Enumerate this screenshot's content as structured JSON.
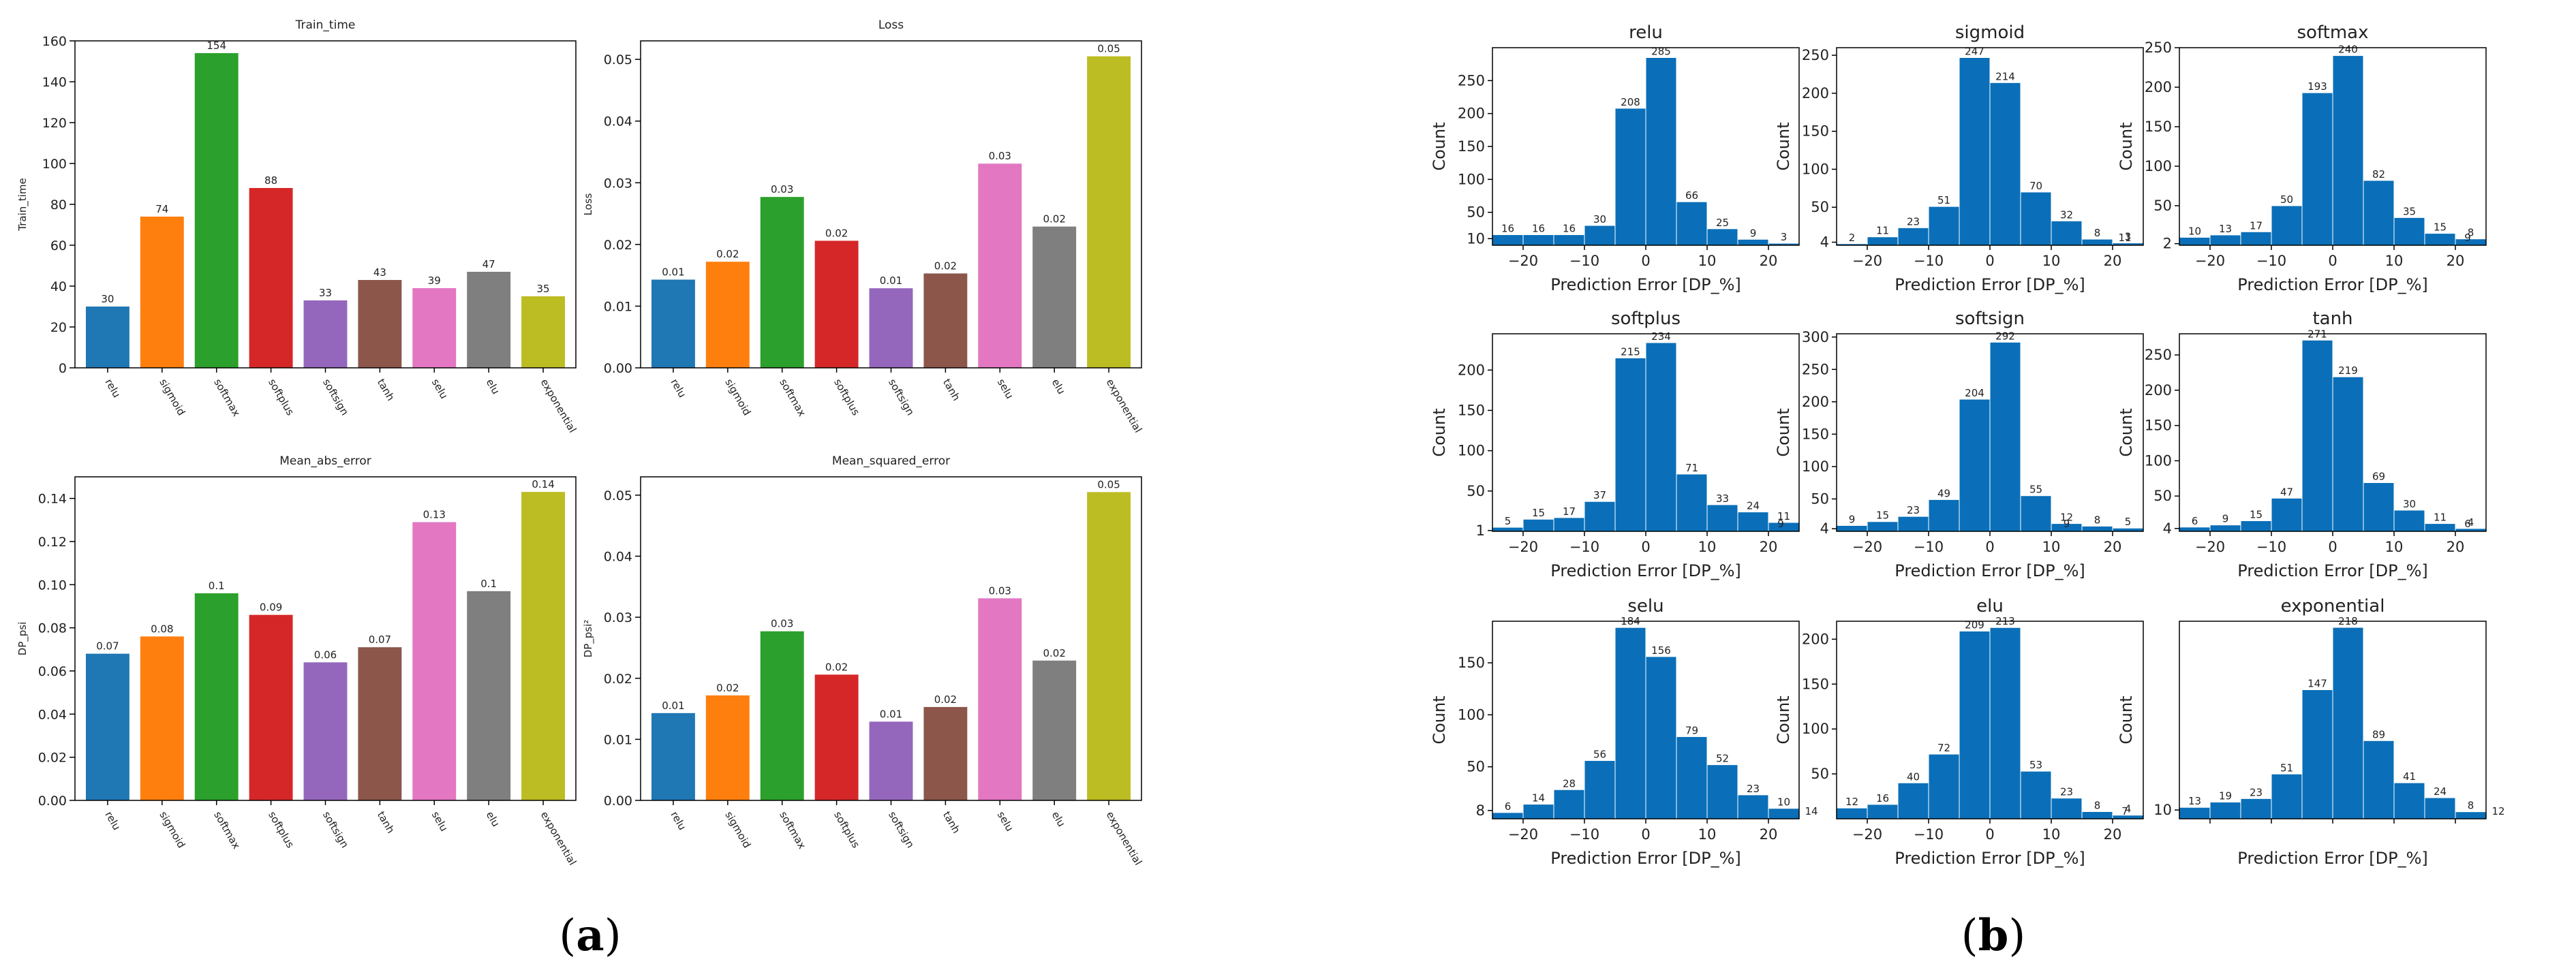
{
  "panel_labels": [
    {
      "open": "(",
      "letter": "a",
      "close": ")"
    },
    {
      "open": "(",
      "letter": "b",
      "close": ")"
    }
  ],
  "colors": {
    "bars": [
      "#1f77b4",
      "#ff7f0e",
      "#2ca02c",
      "#d62728",
      "#9467bd",
      "#8c564b",
      "#e377c2",
      "#7f7f7f",
      "#bcbd22"
    ],
    "histogram": "#0a6fb8",
    "axis": "#000000"
  },
  "chart_data": [
    {
      "type": "bar",
      "title": "Train_time",
      "ylabel": "Train_time",
      "xlabel": "",
      "categories": [
        "relu",
        "sigmoid",
        "softmax",
        "softplus",
        "softsign",
        "tanh",
        "selu",
        "elu",
        "exponential"
      ],
      "values": [
        30,
        74,
        154,
        88,
        33,
        43,
        39,
        47,
        35
      ],
      "data_labels": [
        "30",
        "74",
        "154",
        "88",
        "33",
        "43",
        "39",
        "47",
        "35"
      ],
      "ylim": [
        0,
        160
      ],
      "yticks": [
        0,
        20,
        40,
        60,
        80,
        100,
        120,
        140,
        160
      ],
      "ytick_labels": [
        "0",
        "20",
        "40",
        "60",
        "80",
        "100",
        "120",
        "140",
        "160"
      ]
    },
    {
      "type": "bar",
      "title": "Loss",
      "ylabel": "Loss",
      "xlabel": "",
      "categories": [
        "relu",
        "sigmoid",
        "softmax",
        "softplus",
        "softsign",
        "tanh",
        "selu",
        "elu",
        "exponential"
      ],
      "values": [
        0.0143,
        0.0172,
        0.0277,
        0.0206,
        0.0129,
        0.0153,
        0.0331,
        0.0229,
        0.0505
      ],
      "data_labels": [
        "0.01",
        "0.02",
        "0.03",
        "0.02",
        "0.01",
        "0.02",
        "0.03",
        "0.02",
        "0.05"
      ],
      "ylim": [
        0,
        0.053
      ],
      "yticks": [
        0,
        0.01,
        0.02,
        0.03,
        0.04,
        0.05
      ],
      "ytick_labels": [
        "0.00",
        "0.01",
        "0.02",
        "0.03",
        "0.04",
        "0.05"
      ]
    },
    {
      "type": "bar",
      "title": "Mean_abs_error",
      "ylabel": "DP_psi",
      "xlabel": "",
      "categories": [
        "relu",
        "sigmoid",
        "softmax",
        "softplus",
        "softsign",
        "tanh",
        "selu",
        "elu",
        "exponential"
      ],
      "values": [
        0.068,
        0.076,
        0.096,
        0.086,
        0.064,
        0.071,
        0.129,
        0.097,
        0.143
      ],
      "data_labels": [
        "0.07",
        "0.08",
        "0.1",
        "0.09",
        "0.06",
        "0.07",
        "0.13",
        "0.1",
        "0.14"
      ],
      "ylim": [
        0,
        0.15
      ],
      "yticks": [
        0,
        0.02,
        0.04,
        0.06,
        0.08,
        0.1,
        0.12,
        0.14
      ],
      "ytick_labels": [
        "0.00",
        "0.02",
        "0.04",
        "0.06",
        "0.08",
        "0.10",
        "0.12",
        "0.14"
      ]
    },
    {
      "type": "bar",
      "title": "Mean_squared_error",
      "ylabel": "DP_psi²",
      "xlabel": "",
      "categories": [
        "relu",
        "sigmoid",
        "softmax",
        "softplus",
        "softsign",
        "tanh",
        "selu",
        "elu",
        "exponential"
      ],
      "values": [
        0.0143,
        0.0172,
        0.0277,
        0.0206,
        0.0129,
        0.0153,
        0.0331,
        0.0229,
        0.0505
      ],
      "data_labels": [
        "0.01",
        "0.02",
        "0.03",
        "0.02",
        "0.01",
        "0.02",
        "0.03",
        "0.02",
        "0.05"
      ],
      "ylim": [
        0,
        0.053
      ],
      "yticks": [
        0,
        0.01,
        0.02,
        0.03,
        0.04,
        0.05
      ],
      "ytick_labels": [
        "0.00",
        "0.01",
        "0.02",
        "0.03",
        "0.04",
        "0.05"
      ]
    },
    {
      "type": "bar",
      "subtype": "histogram",
      "title": "relu",
      "xlabel": "Prediction Error [DP_%]",
      "ylabel": "Count",
      "bin_edges": [
        -25,
        -20,
        -15,
        -10,
        -5,
        0,
        5,
        10,
        15,
        20,
        25
      ],
      "values": [
        16,
        16,
        16,
        30,
        208,
        285,
        66,
        25,
        9,
        3
      ],
      "data_labels": [
        "16",
        "16",
        "16",
        "30",
        "208",
        "285",
        "66",
        "25",
        "9",
        "3"
      ],
      "xlim": [
        -25,
        25
      ],
      "ylim": [
        0,
        300
      ],
      "xticks": [
        -20,
        -10,
        0,
        10,
        20
      ],
      "xtick_labels": [
        "−20",
        "−10",
        "0",
        "10",
        "20"
      ],
      "yticks": [
        10,
        50,
        100,
        150,
        200,
        250
      ],
      "ytick_labels": [
        "10",
        "50",
        "100",
        "150",
        "200",
        "250"
      ]
    },
    {
      "type": "bar",
      "subtype": "histogram",
      "title": "sigmoid",
      "xlabel": "Prediction Error [DP_%]",
      "ylabel": "Count",
      "bin_edges": [
        -25,
        -20,
        -15,
        -10,
        -5,
        0,
        5,
        10,
        15,
        20,
        25
      ],
      "values": [
        2,
        11,
        23,
        51,
        247,
        214,
        70,
        32,
        8,
        3
      ],
      "data_labels": [
        "2",
        "11",
        "23",
        "51",
        "247",
        "214",
        "70",
        "32",
        "8",
        "3"
      ],
      "extra_labels": [
        {
          "x": 22,
          "text": "11"
        }
      ],
      "xlim": [
        -25,
        25
      ],
      "ylim": [
        0,
        260
      ],
      "xticks": [
        -20,
        -10,
        0,
        10,
        20
      ],
      "xtick_labels": [
        "−20",
        "−10",
        "0",
        "10",
        "20"
      ],
      "yticks": [
        4,
        50,
        100,
        150,
        200,
        250
      ],
      "ytick_labels": [
        "4",
        "50",
        "100",
        "150",
        "200",
        "250"
      ]
    },
    {
      "type": "bar",
      "subtype": "histogram",
      "title": "softmax",
      "xlabel": "Prediction Error [DP_%]",
      "ylabel": "Count",
      "bin_edges": [
        -25,
        -20,
        -15,
        -10,
        -5,
        0,
        5,
        10,
        15,
        20,
        25
      ],
      "values": [
        10,
        13,
        17,
        50,
        193,
        240,
        82,
        35,
        15,
        8
      ],
      "data_labels": [
        "10",
        "13",
        "17",
        "50",
        "193",
        "240",
        "82",
        "35",
        "15",
        "8"
      ],
      "extra_labels": [
        {
          "x": 22,
          "text": "9"
        }
      ],
      "xlim": [
        -25,
        25
      ],
      "ylim": [
        0,
        250
      ],
      "xticks": [
        -20,
        -10,
        0,
        10,
        20
      ],
      "xtick_labels": [
        "−20",
        "−10",
        "0",
        "10",
        "20"
      ],
      "yticks": [
        2,
        50,
        100,
        150,
        200,
        250
      ],
      "ytick_labels": [
        "2",
        "50",
        "100",
        "150",
        "200",
        "250"
      ]
    },
    {
      "type": "bar",
      "subtype": "histogram",
      "title": "softplus",
      "xlabel": "Prediction Error [DP_%]",
      "ylabel": "Count",
      "bin_edges": [
        -25,
        -20,
        -15,
        -10,
        -5,
        0,
        5,
        10,
        15,
        20,
        25
      ],
      "values": [
        5,
        15,
        17,
        37,
        215,
        234,
        71,
        33,
        24,
        11
      ],
      "data_labels": [
        "5",
        "15",
        "17",
        "37",
        "215",
        "234",
        "71",
        "33",
        "24",
        "11"
      ],
      "extra_labels": [
        {
          "x": 22,
          "text": "9"
        }
      ],
      "xlim": [
        -25,
        25
      ],
      "ylim": [
        0,
        245
      ],
      "xticks": [
        -20,
        -10,
        0,
        10,
        20
      ],
      "xtick_labels": [
        "−20",
        "−10",
        "0",
        "10",
        "20"
      ],
      "yticks": [
        1,
        50,
        100,
        150,
        200
      ],
      "ytick_labels": [
        "1",
        "50",
        "100",
        "150",
        "200"
      ]
    },
    {
      "type": "bar",
      "subtype": "histogram",
      "title": "softsign",
      "xlabel": "Prediction Error [DP_%]",
      "ylabel": "Count",
      "bin_edges": [
        -25,
        -20,
        -15,
        -10,
        -5,
        0,
        5,
        10,
        15,
        20,
        25
      ],
      "values": [
        9,
        15,
        23,
        49,
        204,
        292,
        55,
        12,
        8,
        5
      ],
      "data_labels": [
        "9",
        "15",
        "23",
        "49",
        "204",
        "292",
        "55",
        "12",
        "8",
        "5"
      ],
      "extra_labels": [
        {
          "x": 12.5,
          "text": "9"
        }
      ],
      "xlim": [
        -25,
        25
      ],
      "ylim": [
        0,
        305
      ],
      "xticks": [
        -20,
        -10,
        0,
        10,
        20
      ],
      "xtick_labels": [
        "−20",
        "−10",
        "0",
        "10",
        "20"
      ],
      "yticks": [
        4,
        50,
        100,
        150,
        200,
        250,
        300
      ],
      "ytick_labels": [
        "4",
        "50",
        "100",
        "150",
        "200",
        "250",
        "300"
      ]
    },
    {
      "type": "bar",
      "subtype": "histogram",
      "title": "tanh",
      "xlabel": "Prediction Error [DP_%]",
      "ylabel": "Count",
      "bin_edges": [
        -25,
        -20,
        -15,
        -10,
        -5,
        0,
        5,
        10,
        15,
        20,
        25
      ],
      "values": [
        6,
        9,
        15,
        47,
        271,
        219,
        69,
        30,
        11,
        4
      ],
      "data_labels": [
        "6",
        "9",
        "15",
        "47",
        "271",
        "219",
        "69",
        "30",
        "11",
        "4"
      ],
      "extra_labels": [
        {
          "x": 22,
          "text": "6"
        }
      ],
      "xlim": [
        -25,
        25
      ],
      "ylim": [
        0,
        280
      ],
      "xticks": [
        -20,
        -10,
        0,
        10,
        20
      ],
      "xtick_labels": [
        "−20",
        "−10",
        "0",
        "10",
        "20"
      ],
      "yticks": [
        4,
        50,
        100,
        150,
        200,
        250
      ],
      "ytick_labels": [
        "4",
        "50",
        "100",
        "150",
        "200",
        "250"
      ]
    },
    {
      "type": "bar",
      "subtype": "histogram",
      "title": "selu",
      "xlabel": "Prediction Error [DP_%]",
      "ylabel": "Count",
      "bin_edges": [
        -25,
        -20,
        -15,
        -10,
        -5,
        0,
        5,
        10,
        15,
        20,
        25
      ],
      "values": [
        6,
        14,
        28,
        56,
        184,
        156,
        79,
        52,
        23,
        10
      ],
      "data_labels": [
        "6",
        "14",
        "28",
        "56",
        "184",
        "156",
        "79",
        "52",
        "23",
        "10"
      ],
      "extra_labels": [
        {
          "x": 27,
          "text": "14"
        }
      ],
      "xlim": [
        -25,
        25
      ],
      "ylim": [
        0,
        190
      ],
      "xticks": [
        -20,
        -10,
        0,
        10,
        20
      ],
      "xtick_labels": [
        "−20",
        "−10",
        "0",
        "10",
        "20"
      ],
      "yticks": [
        8,
        50,
        100,
        150
      ],
      "ytick_labels": [
        "8",
        "50",
        "100",
        "150"
      ]
    },
    {
      "type": "bar",
      "subtype": "histogram",
      "title": "elu",
      "xlabel": "Prediction Error [DP_%]",
      "ylabel": "Count",
      "bin_edges": [
        -25,
        -20,
        -15,
        -10,
        -5,
        0,
        5,
        10,
        15,
        20,
        25
      ],
      "values": [
        12,
        16,
        40,
        72,
        209,
        213,
        53,
        23,
        8,
        4
      ],
      "data_labels": [
        "12",
        "16",
        "40",
        "72",
        "209",
        "213",
        "53",
        "23",
        "8",
        "4"
      ],
      "extra_labels": [
        {
          "x": 22,
          "text": "7"
        }
      ],
      "xlim": [
        -25,
        25
      ],
      "ylim": [
        0,
        220
      ],
      "xticks": [
        -20,
        -10,
        0,
        10,
        20
      ],
      "xtick_labels": [
        "−20",
        "−10",
        "0",
        "10",
        "20"
      ],
      "yticks": [
        50,
        100,
        150,
        200
      ],
      "ytick_labels": [
        "50",
        "100",
        "150",
        "200"
      ]
    },
    {
      "type": "bar",
      "subtype": "histogram",
      "title": "exponential",
      "xlabel": "Prediction Error [DP_%]",
      "ylabel": "Count",
      "bin_edges": [
        -25,
        -20,
        -15,
        -10,
        -5,
        0,
        5,
        10,
        15,
        20,
        25
      ],
      "values": [
        13,
        19,
        23,
        51,
        147,
        218,
        89,
        41,
        24,
        8
      ],
      "data_labels": [
        "13",
        "19",
        "23",
        "51",
        "147",
        "218",
        "89",
        "41",
        "24",
        "8"
      ],
      "extra_labels": [
        {
          "x": 27,
          "text": "12"
        }
      ],
      "xlim": [
        -25,
        25
      ],
      "ylim": [
        0,
        225
      ],
      "xticks": [
        -20,
        -10,
        0,
        10,
        20
      ],
      "xtick_labels": [
        "",
        "",
        "",
        "",
        ""
      ],
      "yticks": [
        10
      ],
      "ytick_labels": [
        "10"
      ]
    }
  ]
}
